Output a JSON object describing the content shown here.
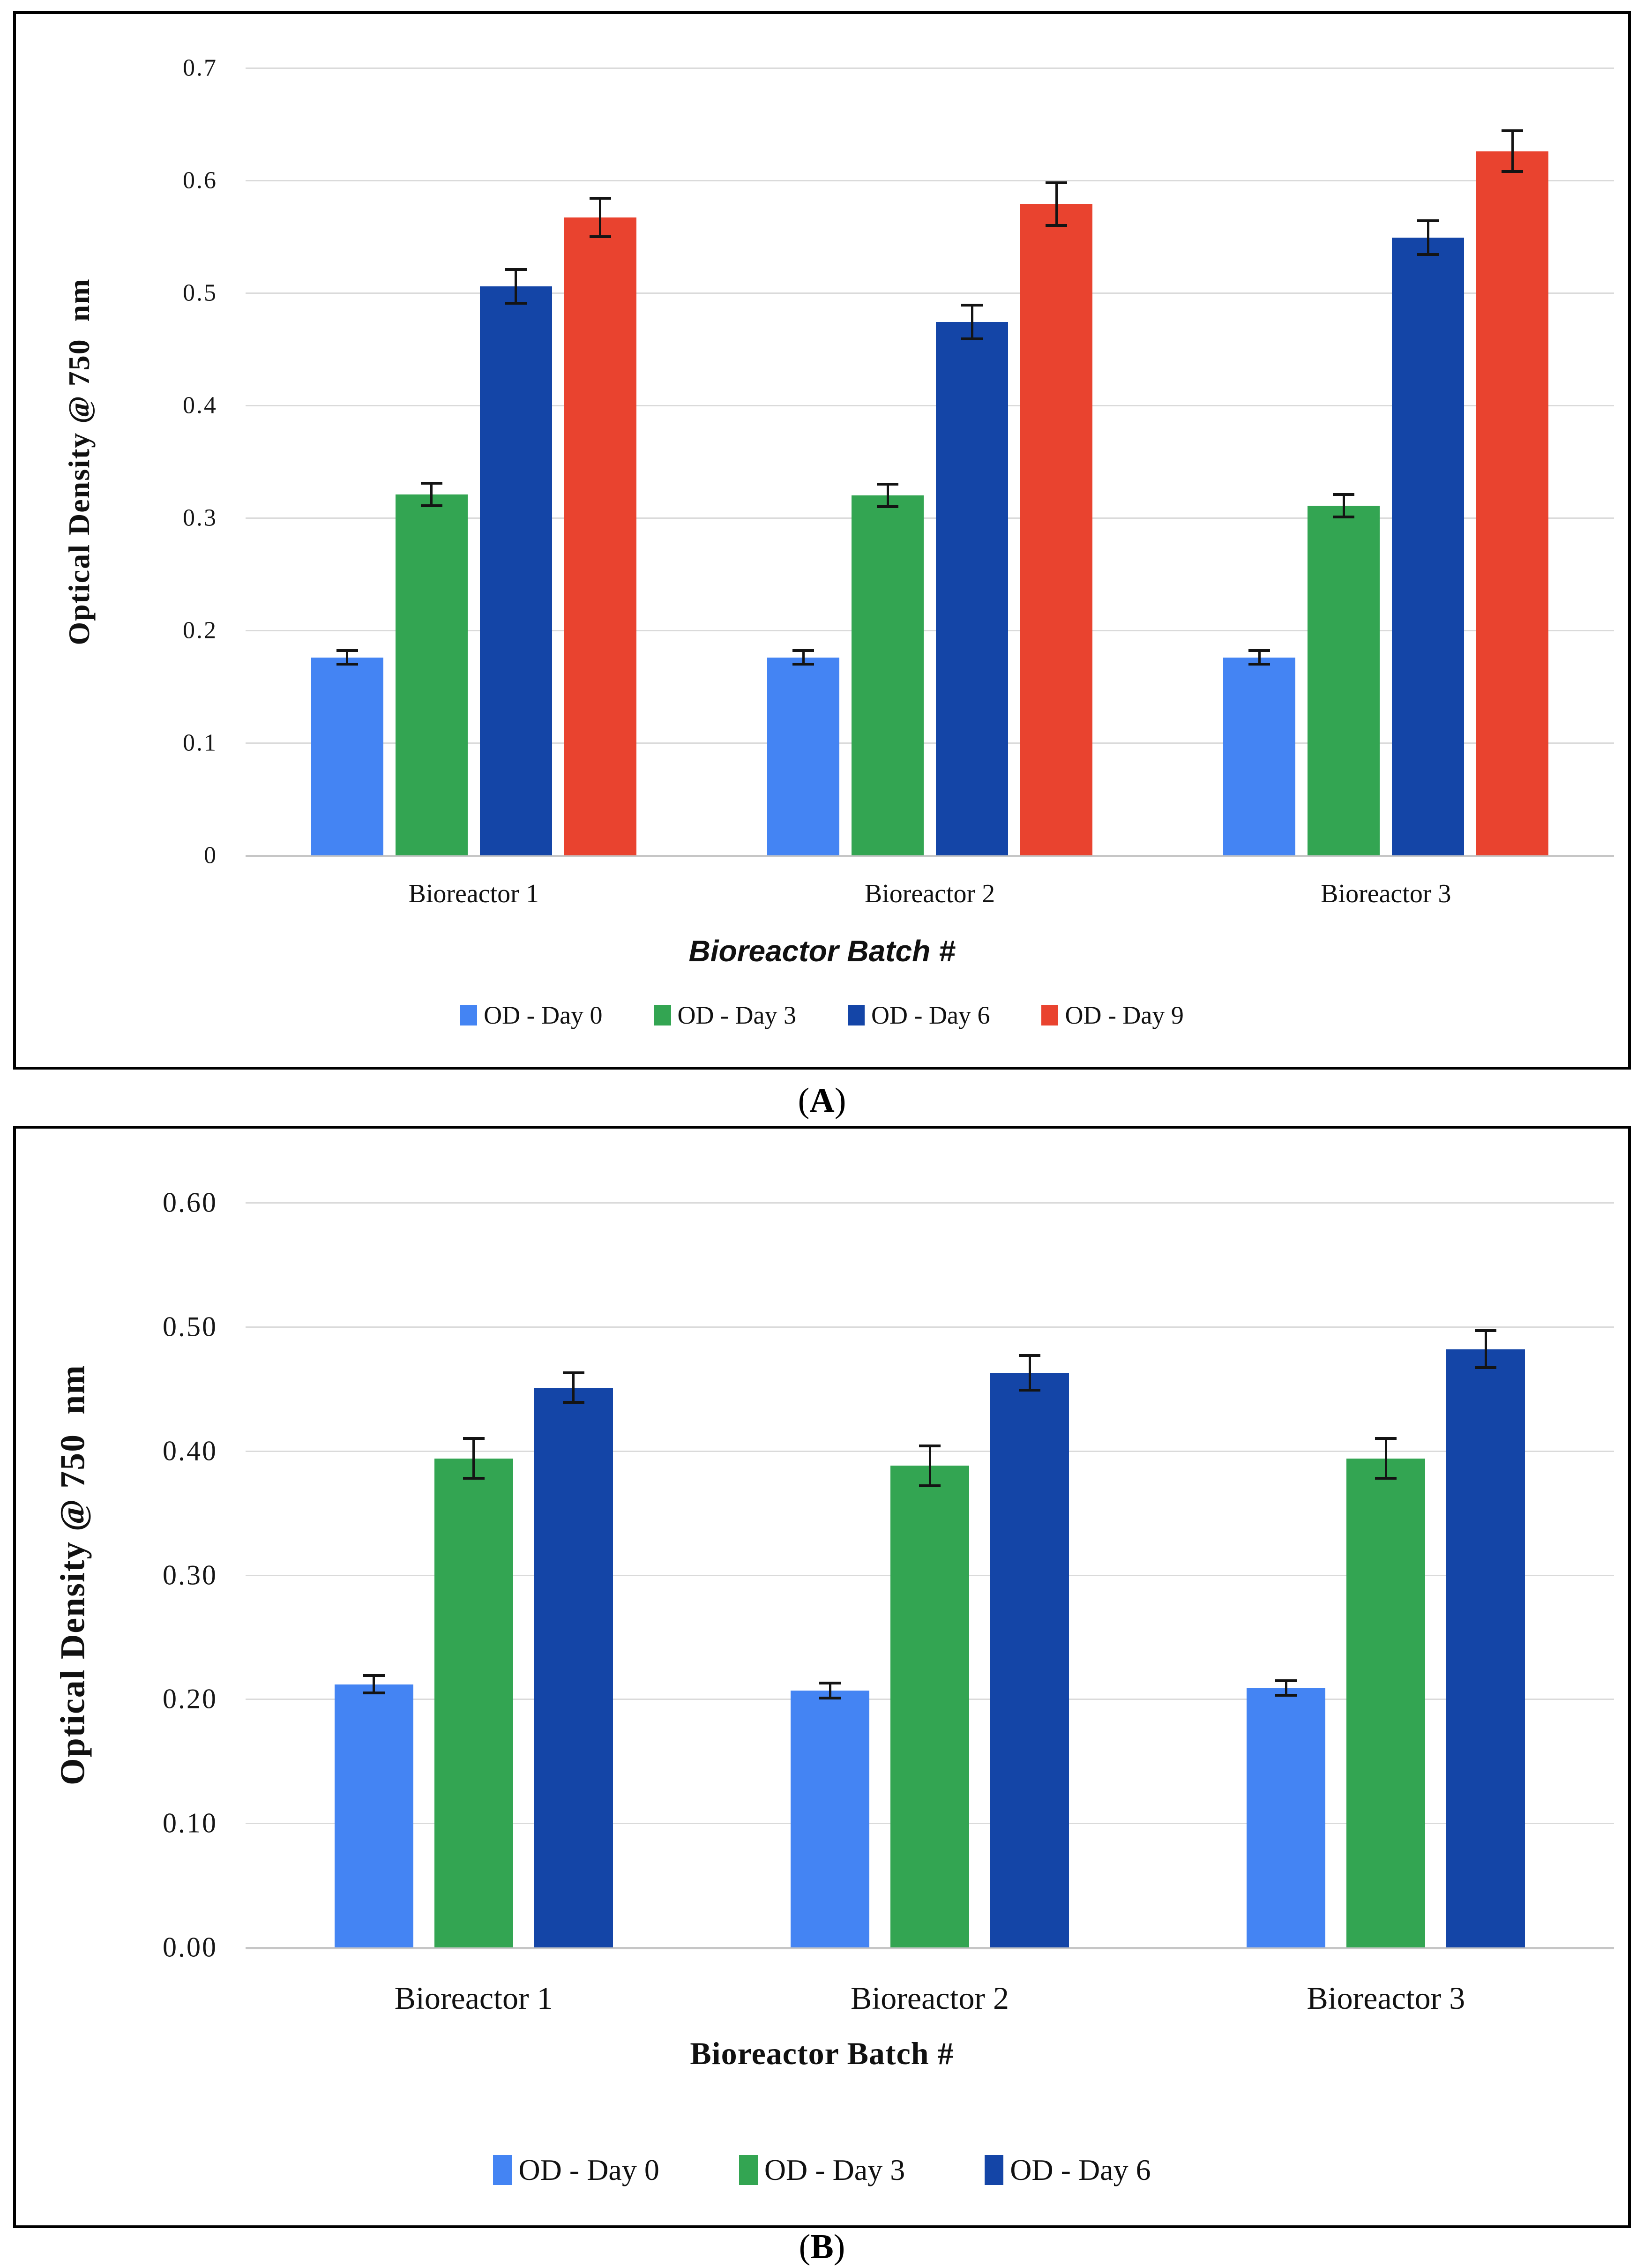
{
  "captions": {
    "a": "A",
    "b": "B"
  },
  "chart_data": [
    {
      "type": "bar",
      "panel": "A",
      "categories": [
        "Bioreactor 1",
        "Bioreactor 2",
        "Bioreactor 3"
      ],
      "series": [
        {
          "name": "OD - Day 0",
          "color": "#4484F3",
          "values": [
            0.176,
            0.176,
            0.176
          ],
          "errors": [
            0.006,
            0.006,
            0.006
          ]
        },
        {
          "name": "OD - Day 3",
          "color": "#33A552",
          "values": [
            0.321,
            0.32,
            0.311
          ],
          "errors": [
            0.01,
            0.01,
            0.01
          ]
        },
        {
          "name": "OD - Day 6",
          "color": "#1445A7",
          "values": [
            0.506,
            0.474,
            0.549
          ],
          "errors": [
            0.015,
            0.015,
            0.015
          ]
        },
        {
          "name": "OD - Day 9",
          "color": "#E9432F",
          "values": [
            0.567,
            0.579,
            0.626
          ],
          "errors": [
            0.017,
            0.019,
            0.018
          ]
        }
      ],
      "xlabel": "Bioreactor Batch #",
      "ylabel": "Optical Density @ 750  nm",
      "ylim": [
        0,
        0.7
      ],
      "yticks": [
        "0",
        "0.1",
        "0.2",
        "0.3",
        "0.4",
        "0.5",
        "0.6",
        "0.7"
      ],
      "grid": true,
      "legend_position": "bottom"
    },
    {
      "type": "bar",
      "panel": "B",
      "categories": [
        "Bioreactor 1",
        "Bioreactor 2",
        "Bioreactor 3"
      ],
      "series": [
        {
          "name": "OD - Day 0",
          "color": "#4484F3",
          "values": [
            0.212,
            0.207,
            0.209
          ],
          "errors": [
            0.007,
            0.006,
            0.006
          ]
        },
        {
          "name": "OD - Day 3",
          "color": "#33A552",
          "values": [
            0.394,
            0.388,
            0.394
          ],
          "errors": [
            0.016,
            0.016,
            0.016
          ]
        },
        {
          "name": "OD - Day 6",
          "color": "#1445A7",
          "values": [
            0.451,
            0.463,
            0.482
          ],
          "errors": [
            0.012,
            0.014,
            0.015
          ]
        }
      ],
      "xlabel": "Bioreactor Batch #",
      "ylabel": "Optical Density @ 750  nm",
      "ylim": [
        0,
        0.6
      ],
      "yticks": [
        "0.00",
        "0.10",
        "0.20",
        "0.30",
        "0.40",
        "0.50",
        "0.60"
      ],
      "grid": true,
      "legend_position": "bottom"
    }
  ]
}
